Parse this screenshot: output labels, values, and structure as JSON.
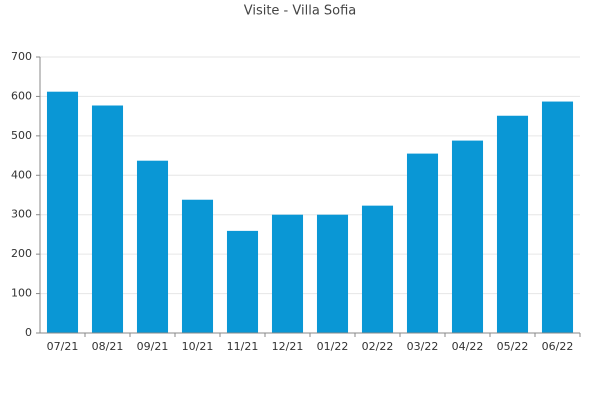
{
  "chart_data": {
    "type": "bar",
    "title": "Visite - Villa Sofia",
    "categories": [
      "07/21",
      "08/21",
      "09/21",
      "10/21",
      "11/21",
      "12/21",
      "01/22",
      "02/22",
      "03/22",
      "04/22",
      "05/22",
      "06/22"
    ],
    "values": [
      612,
      577,
      437,
      338,
      259,
      300,
      300,
      323,
      455,
      488,
      551,
      587
    ],
    "color": "#0a97d5",
    "ylim": [
      0,
      700
    ],
    "yticks": [
      0,
      100,
      200,
      300,
      400,
      500,
      600,
      700
    ],
    "grid": true
  }
}
